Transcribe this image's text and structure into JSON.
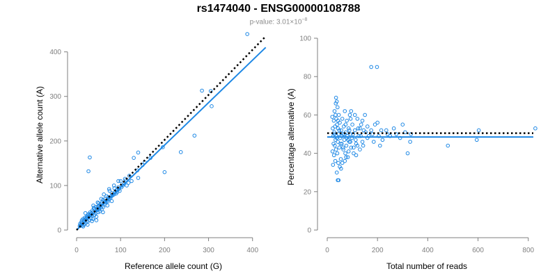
{
  "title": "rs1474040 - ENSG00000108788",
  "subtitle": {
    "prefix": "p-value: 3.01×10",
    "exponent": "−8"
  },
  "colors": {
    "points": "#1e88e5",
    "fit_line": "#1e88e5",
    "reference_line": "#000000",
    "axis": "#7f7f7f"
  },
  "chart_data": [
    {
      "type": "scatter",
      "xlabel": "Reference allele count (G)",
      "ylabel": "Alternative allele count (A)",
      "xlim": [
        0,
        440
      ],
      "ylim": [
        0,
        440
      ],
      "xticks": [
        0,
        100,
        200,
        300,
        400
      ],
      "yticks": [
        0,
        100,
        200,
        300,
        400
      ],
      "grid": false,
      "reference_line": {
        "style": "dotted",
        "x": [
          0,
          430
        ],
        "y": [
          0,
          435
        ]
      },
      "fit_line": {
        "style": "solid",
        "x": [
          0,
          430
        ],
        "y": [
          0,
          410
        ]
      },
      "points": [
        [
          388,
          440
        ],
        [
          285,
          313
        ],
        [
          305,
          312
        ],
        [
          307,
          278
        ],
        [
          268,
          212
        ],
        [
          237,
          175
        ],
        [
          196,
          186
        ],
        [
          200,
          130
        ],
        [
          30,
          163
        ],
        [
          27,
          132
        ],
        [
          168,
          162
        ],
        [
          140,
          174
        ],
        [
          150,
          146
        ],
        [
          155,
          152
        ],
        [
          130,
          162
        ],
        [
          138,
          134
        ],
        [
          140,
          117
        ],
        [
          120,
          122
        ],
        [
          125,
          110
        ],
        [
          110,
          115
        ],
        [
          118,
          106
        ],
        [
          105,
          100
        ],
        [
          100,
          110
        ],
        [
          96,
          92
        ],
        [
          92,
          85
        ],
        [
          86,
          94
        ],
        [
          80,
          83
        ],
        [
          75,
          88
        ],
        [
          72,
          74
        ],
        [
          68,
          76
        ],
        [
          65,
          70
        ],
        [
          63,
          64
        ],
        [
          60,
          68
        ],
        [
          58,
          62
        ],
        [
          55,
          59
        ],
        [
          52,
          55
        ],
        [
          50,
          60
        ],
        [
          48,
          52
        ],
        [
          46,
          48
        ],
        [
          44,
          52
        ],
        [
          42,
          44
        ],
        [
          40,
          47
        ],
        [
          38,
          41
        ],
        [
          36,
          44
        ],
        [
          34,
          38
        ],
        [
          32,
          36
        ],
        [
          30,
          34
        ],
        [
          28,
          30
        ],
        [
          26,
          33
        ],
        [
          24,
          27
        ],
        [
          22,
          26
        ],
        [
          20,
          24
        ],
        [
          18,
          20
        ],
        [
          16,
          22
        ],
        [
          14,
          16
        ],
        [
          12,
          15
        ],
        [
          10,
          12
        ],
        [
          9,
          10
        ],
        [
          8,
          14
        ],
        [
          7,
          9
        ],
        [
          11,
          18
        ],
        [
          13,
          10
        ],
        [
          15,
          25
        ],
        [
          17,
          12
        ],
        [
          19,
          28
        ],
        [
          21,
          16
        ],
        [
          23,
          30
        ],
        [
          25,
          19
        ],
        [
          27,
          36
        ],
        [
          29,
          22
        ],
        [
          31,
          40
        ],
        [
          33,
          26
        ],
        [
          35,
          33
        ],
        [
          37,
          25
        ],
        [
          39,
          50
        ],
        [
          41,
          34
        ],
        [
          43,
          38
        ],
        [
          45,
          30
        ],
        [
          47,
          45
        ],
        [
          49,
          40
        ],
        [
          51,
          48
        ],
        [
          53,
          42
        ],
        [
          55,
          50
        ],
        [
          57,
          46
        ],
        [
          59,
          55
        ],
        [
          61,
          52
        ],
        [
          64,
          58
        ],
        [
          66,
          62
        ],
        [
          69,
          66
        ],
        [
          71,
          64
        ],
        [
          74,
          70
        ],
        [
          77,
          72
        ],
        [
          79,
          76
        ],
        [
          82,
          78
        ],
        [
          85,
          80
        ],
        [
          88,
          86
        ],
        [
          90,
          82
        ],
        [
          93,
          90
        ],
        [
          95,
          96
        ],
        [
          98,
          88
        ],
        [
          102,
          96
        ],
        [
          108,
          104
        ],
        [
          112,
          112
        ],
        [
          114,
          100
        ],
        [
          20,
          38
        ],
        [
          15,
          8
        ],
        [
          12,
          22
        ],
        [
          25,
          12
        ],
        [
          35,
          20
        ],
        [
          45,
          22
        ],
        [
          60,
          40
        ],
        [
          70,
          55
        ],
        [
          80,
          65
        ],
        [
          56,
          70
        ],
        [
          48,
          62
        ],
        [
          38,
          55
        ],
        [
          85,
          100
        ],
        [
          95,
          110
        ],
        [
          62,
          80
        ],
        [
          74,
          92
        ]
      ]
    },
    {
      "type": "scatter",
      "xlabel": "Total number of reads",
      "ylabel": "Percentage alternative (A)",
      "xlim": [
        0,
        820
      ],
      "ylim": [
        0,
        100
      ],
      "xticks": [
        0,
        200,
        400,
        600,
        800
      ],
      "yticks": [
        0,
        20,
        40,
        60,
        80,
        100
      ],
      "grid": false,
      "reference_line": {
        "style": "dotted",
        "x": [
          0,
          820
        ],
        "y": [
          50.5,
          50.5
        ]
      },
      "fit_line": {
        "style": "solid",
        "x": [
          0,
          820
        ],
        "y": [
          48.5,
          48.5
        ]
      },
      "points": [
        [
          828,
          53
        ],
        [
          603,
          52
        ],
        [
          595,
          47
        ],
        [
          480,
          44
        ],
        [
          333,
          50
        ],
        [
          330,
          46
        ],
        [
          320,
          40
        ],
        [
          300,
          55
        ],
        [
          290,
          48
        ],
        [
          265,
          53
        ],
        [
          240,
          50
        ],
        [
          235,
          52
        ],
        [
          220,
          47
        ],
        [
          210,
          44
        ],
        [
          200,
          56
        ],
        [
          198,
          85
        ],
        [
          175,
          85
        ],
        [
          160,
          48
        ],
        [
          150,
          60
        ],
        [
          145,
          52
        ],
        [
          140,
          46
        ],
        [
          135,
          55
        ],
        [
          130,
          42
        ],
        [
          125,
          49
        ],
        [
          120,
          58
        ],
        [
          115,
          45
        ],
        [
          110,
          52
        ],
        [
          105,
          40
        ],
        [
          100,
          55
        ],
        [
          98,
          48
        ],
        [
          95,
          43
        ],
        [
          92,
          50
        ],
        [
          90,
          60
        ],
        [
          88,
          46
        ],
        [
          85,
          53
        ],
        [
          82,
          38
        ],
        [
          80,
          49
        ],
        [
          78,
          57
        ],
        [
          76,
          44
        ],
        [
          74,
          51
        ],
        [
          72,
          40
        ],
        [
          70,
          62
        ],
        [
          68,
          47
        ],
        [
          66,
          54
        ],
        [
          64,
          42
        ],
        [
          62,
          50
        ],
        [
          60,
          58
        ],
        [
          58,
          45
        ],
        [
          56,
          52
        ],
        [
          54,
          37
        ],
        [
          52,
          48
        ],
        [
          50,
          56
        ],
        [
          48,
          43
        ],
        [
          46,
          60
        ],
        [
          45,
          50
        ],
        [
          44,
          35
        ],
        [
          43,
          53
        ],
        [
          42,
          46
        ],
        [
          41,
          64
        ],
        [
          40,
          40
        ],
        [
          39,
          55
        ],
        [
          38,
          30
        ],
        [
          37,
          49
        ],
        [
          36,
          58
        ],
        [
          35,
          42
        ],
        [
          34,
          66
        ],
        [
          33,
          47
        ],
        [
          32,
          36
        ],
        [
          31,
          54
        ],
        [
          30,
          44
        ],
        [
          29,
          62
        ],
        [
          28,
          51
        ],
        [
          27,
          39
        ],
        [
          26,
          57
        ],
        [
          25,
          45
        ],
        [
          24,
          49
        ],
        [
          23,
          34
        ],
        [
          22,
          53
        ],
        [
          21,
          41
        ],
        [
          20,
          59
        ],
        [
          35,
          69
        ],
        [
          38,
          67
        ],
        [
          42,
          26
        ],
        [
          45,
          26
        ],
        [
          55,
          32
        ],
        [
          60,
          35
        ],
        [
          50,
          33
        ],
        [
          70,
          36
        ],
        [
          75,
          38
        ],
        [
          85,
          41
        ],
        [
          95,
          62
        ],
        [
          110,
          60
        ],
        [
          120,
          44
        ],
        [
          130,
          53
        ],
        [
          140,
          57
        ],
        [
          160,
          54
        ],
        [
          175,
          52
        ],
        [
          185,
          46
        ],
        [
          190,
          55
        ],
        [
          115,
          39
        ],
        [
          105,
          43
        ],
        [
          92,
          46
        ],
        [
          88,
          52
        ],
        [
          78,
          48
        ],
        [
          68,
          50
        ],
        [
          58,
          49
        ],
        [
          48,
          52
        ],
        [
          38,
          48
        ],
        [
          28,
          50
        ],
        [
          33,
          60
        ],
        [
          43,
          57
        ],
        [
          53,
          45
        ],
        [
          63,
          43
        ],
        [
          73,
          55
        ],
        [
          83,
          47
        ],
        [
          93,
          58
        ],
        [
          103,
          50
        ],
        [
          113,
          47
        ],
        [
          123,
          53
        ],
        [
          133,
          49
        ],
        [
          143,
          44
        ],
        [
          153,
          51
        ],
        [
          165,
          49
        ],
        [
          180,
          50
        ],
        [
          205,
          49
        ],
        [
          215,
          52
        ],
        [
          250,
          49
        ],
        [
          275,
          50
        ],
        [
          310,
          51
        ]
      ]
    }
  ]
}
